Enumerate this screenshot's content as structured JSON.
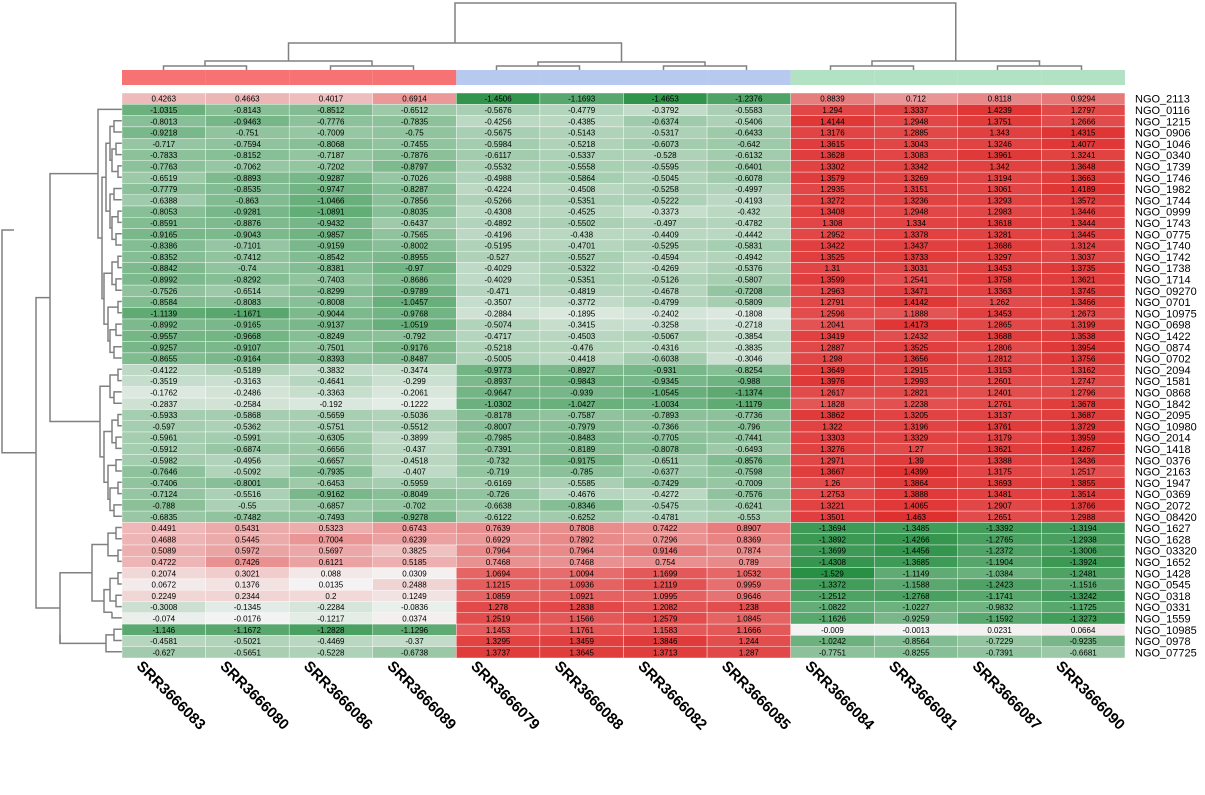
{
  "chart_data": {
    "type": "heatmap",
    "columns": [
      "SRR3666083",
      "SRR3666080",
      "SRR3666086",
      "SRR3666089",
      "SRR3666079",
      "SRR3666088",
      "SRR3666082",
      "SRR3666085",
      "SRR3666084",
      "SRR3666081",
      "SRR3666087",
      "SRR3666090"
    ],
    "rows": [
      "NGO_2113",
      "NGO_0116",
      "NGO_1215",
      "NGO_0906",
      "NGO_1046",
      "NGO_0340",
      "NGO_1739",
      "NGO_1746",
      "NGO_1982",
      "NGO_1744",
      "NGO_0999",
      "NGO_1743",
      "NGO_0775",
      "NGO_1740",
      "NGO_1742",
      "NGO_1738",
      "NGO_1714",
      "NGO_09270",
      "NGO_0701",
      "NGO_10975",
      "NGO_0698",
      "NGO_1422",
      "NGO_0874",
      "NGO_0702",
      "NGO_2094",
      "NGO_1581",
      "NGO_0868",
      "NGO_1842",
      "NGO_2095",
      "NGO_10980",
      "NGO_2014",
      "NGO_1418",
      "NGO_0376",
      "NGO_2163",
      "NGO_1947",
      "NGO_0369",
      "NGO_2072",
      "NGO_08420",
      "NGO_1627",
      "NGO_1628",
      "NGO_03320",
      "NGO_1652",
      "NGO_1428",
      "NGO_0545",
      "NGO_0318",
      "NGO_0331",
      "NGO_1559",
      "NGO_10985",
      "NGO_0978",
      "NGO_07725"
    ],
    "values": [
      [
        "0.4263",
        "0.4663",
        "0.4017",
        "0.6914",
        "-1.4506",
        "-1.1693",
        "-1.4653",
        "-1.2376",
        "0.8839",
        "0.712",
        "0.8118",
        "0.9294"
      ],
      [
        "-1.0315",
        "-0.8143",
        "-0.8512",
        "-0.6512",
        "-0.5676",
        "-0.4779",
        "-0.3792",
        "-0.5583",
        "1.294",
        "1.3337",
        "1.4239",
        "1.2797"
      ],
      [
        "-0.8013",
        "-0.9463",
        "-0.7776",
        "-0.7835",
        "-0.4256",
        "-0.4385",
        "-0.6374",
        "-0.5406",
        "1.4144",
        "1.2948",
        "1.3751",
        "1.2666"
      ],
      [
        "-0.9218",
        "-0.751",
        "-0.7009",
        "-0.75",
        "-0.5675",
        "-0.5143",
        "-0.5317",
        "-0.6433",
        "1.3176",
        "1.2885",
        "1.343",
        "1.4315"
      ],
      [
        "-0.717",
        "-0.7594",
        "-0.8068",
        "-0.7455",
        "-0.5984",
        "-0.5218",
        "-0.6073",
        "-0.642",
        "1.3615",
        "1.3043",
        "1.3246",
        "1.4077"
      ],
      [
        "-0.7833",
        "-0.8152",
        "-0.7187",
        "-0.7876",
        "-0.6117",
        "-0.5337",
        "-0.528",
        "-0.6132",
        "1.3628",
        "1.3083",
        "1.3961",
        "1.3241"
      ],
      [
        "-0.7763",
        "-0.7062",
        "-0.7202",
        "-0.8797",
        "-0.5532",
        "-0.5558",
        "-0.5595",
        "-0.6401",
        "1.3302",
        "1.3342",
        "1.342",
        "1.3648"
      ],
      [
        "-0.6519",
        "-0.8893",
        "-0.9287",
        "-0.7026",
        "-0.4988",
        "-0.5864",
        "-0.5045",
        "-0.6078",
        "1.3579",
        "1.3269",
        "1.3194",
        "1.3663"
      ],
      [
        "-0.7779",
        "-0.8535",
        "-0.9747",
        "-0.8287",
        "-0.4224",
        "-0.4508",
        "-0.5258",
        "-0.4997",
        "1.2935",
        "1.3151",
        "1.3061",
        "1.4189"
      ],
      [
        "-0.6388",
        "-0.863",
        "-1.0466",
        "-0.7856",
        "-0.5266",
        "-0.5351",
        "-0.5222",
        "-0.4193",
        "1.3272",
        "1.3236",
        "1.3293",
        "1.3572"
      ],
      [
        "-0.8053",
        "-0.9281",
        "-1.0891",
        "-0.8035",
        "-0.4308",
        "-0.4525",
        "-0.3373",
        "-0.432",
        "1.3408",
        "1.2948",
        "1.2983",
        "1.3446"
      ],
      [
        "-0.8591",
        "-0.8876",
        "-0.9432",
        "-0.6437",
        "-0.4892",
        "-0.5502",
        "-0.497",
        "-0.4782",
        "1.308",
        "1.334",
        "1.3618",
        "1.3444"
      ],
      [
        "-0.9165",
        "-0.9043",
        "-0.9857",
        "-0.7565",
        "-0.4196",
        "-0.438",
        "-0.4409",
        "-0.4442",
        "1.2952",
        "1.3378",
        "1.3281",
        "1.3445"
      ],
      [
        "-0.8386",
        "-0.7101",
        "-0.9159",
        "-0.8002",
        "-0.5195",
        "-0.4701",
        "-0.5295",
        "-0.5831",
        "1.3422",
        "1.3437",
        "1.3686",
        "1.3124"
      ],
      [
        "-0.8352",
        "-0.7412",
        "-0.8542",
        "-0.8955",
        "-0.527",
        "-0.5527",
        "-0.4594",
        "-0.4942",
        "1.3525",
        "1.3733",
        "1.3297",
        "1.3037"
      ],
      [
        "-0.8842",
        "-0.74",
        "-0.8381",
        "-0.97",
        "-0.4029",
        "-0.5322",
        "-0.4269",
        "-0.5376",
        "1.31",
        "1.3031",
        "1.3453",
        "1.3735"
      ],
      [
        "-0.8992",
        "-0.8292",
        "-0.7403",
        "-0.8686",
        "-0.4029",
        "-0.5351",
        "-0.5126",
        "-0.5807",
        "1.3599",
        "1.2541",
        "1.3758",
        "1.3621"
      ],
      [
        "-0.7526",
        "-0.6514",
        "-0.8299",
        "-0.9789",
        "-0.471",
        "-0.4819",
        "-0.4678",
        "-0.7208",
        "1.2963",
        "1.3471",
        "1.3363",
        "1.3745"
      ],
      [
        "-0.8584",
        "-0.8083",
        "-0.8008",
        "-1.0457",
        "-0.3507",
        "-0.3772",
        "-0.4799",
        "-0.5809",
        "1.2791",
        "1.4142",
        "1.262",
        "1.3466"
      ],
      [
        "-1.1139",
        "-1.1671",
        "-0.9044",
        "-0.9768",
        "-0.2884",
        "-0.1895",
        "-0.2402",
        "-0.1808",
        "1.2596",
        "1.1888",
        "1.3453",
        "1.2673"
      ],
      [
        "-0.8992",
        "-0.9165",
        "-0.9137",
        "-1.0519",
        "-0.5074",
        "-0.3415",
        "-0.3258",
        "-0.2718",
        "1.2041",
        "1.4173",
        "1.2865",
        "1.3199"
      ],
      [
        "-0.9557",
        "-0.9668",
        "-0.8249",
        "-0.792",
        "-0.4717",
        "-0.4503",
        "-0.5067",
        "-0.3854",
        "1.3419",
        "1.2432",
        "1.3688",
        "1.3538"
      ],
      [
        "-0.9257",
        "-0.9107",
        "-0.7501",
        "-0.9176",
        "-0.5218",
        "-0.476",
        "-0.4316",
        "-0.3835",
        "1.2887",
        "1.3525",
        "1.2806",
        "1.3954"
      ],
      [
        "-0.8655",
        "-0.9164",
        "-0.8393",
        "-0.8487",
        "-0.5005",
        "-0.4418",
        "-0.6038",
        "-0.3046",
        "1.298",
        "1.3656",
        "1.2812",
        "1.3756"
      ],
      [
        "-0.4122",
        "-0.5189",
        "-0.3832",
        "-0.3474",
        "-0.9773",
        "-0.8927",
        "-0.931",
        "-0.8254",
        "1.3649",
        "1.2915",
        "1.3153",
        "1.3162"
      ],
      [
        "-0.3519",
        "-0.3163",
        "-0.4641",
        "-0.299",
        "-0.8937",
        "-0.9843",
        "-0.9345",
        "-0.988",
        "1.3976",
        "1.2993",
        "1.2601",
        "1.2747"
      ],
      [
        "-0.1762",
        "-0.2486",
        "-0.3363",
        "-0.2061",
        "-0.9647",
        "-0.939",
        "-1.0545",
        "-1.1374",
        "1.2617",
        "1.2821",
        "1.2401",
        "1.2796"
      ],
      [
        "-0.2837",
        "-0.2584",
        "-0.192",
        "-0.1222",
        "-1.0302",
        "-1.0427",
        "-1.0034",
        "-1.1179",
        "1.1828",
        "1.2238",
        "1.2761",
        "1.3678"
      ],
      [
        "-0.5933",
        "-0.5868",
        "-0.5659",
        "-0.5036",
        "-0.8178",
        "-0.7587",
        "-0.7893",
        "-0.7736",
        "1.3862",
        "1.3205",
        "1.3137",
        "1.3687"
      ],
      [
        "-0.597",
        "-0.5362",
        "-0.5751",
        "-0.5512",
        "-0.8007",
        "-0.7979",
        "-0.7366",
        "-0.796",
        "1.322",
        "1.3196",
        "1.3761",
        "1.3729"
      ],
      [
        "-0.5961",
        "-0.5991",
        "-0.6305",
        "-0.3899",
        "-0.7985",
        "-0.8483",
        "-0.7705",
        "-0.7441",
        "1.3303",
        "1.3329",
        "1.3179",
        "1.3959"
      ],
      [
        "-0.5912",
        "-0.6874",
        "-0.6656",
        "-0.437",
        "-0.7391",
        "-0.8189",
        "-0.8078",
        "-0.6493",
        "1.3276",
        "1.27",
        "1.3621",
        "1.4267"
      ],
      [
        "-0.5982",
        "-0.4956",
        "-0.6657",
        "-0.4518",
        "-0.732",
        "-0.9175",
        "-0.6511",
        "-0.8576",
        "1.2971",
        "1.39",
        "1.3388",
        "1.3436"
      ],
      [
        "-0.7646",
        "-0.5092",
        "-0.7935",
        "-0.407",
        "-0.719",
        "-0.785",
        "-0.6377",
        "-0.7598",
        "1.3667",
        "1.4399",
        "1.3175",
        "1.2517"
      ],
      [
        "-0.7406",
        "-0.8001",
        "-0.6453",
        "-0.5959",
        "-0.6169",
        "-0.5585",
        "-0.7429",
        "-0.7009",
        "1.26",
        "1.3864",
        "1.3693",
        "1.3855"
      ],
      [
        "-0.7124",
        "-0.5516",
        "-0.9162",
        "-0.8049",
        "-0.726",
        "-0.4676",
        "-0.4272",
        "-0.7576",
        "1.2753",
        "1.3888",
        "1.3481",
        "1.3514"
      ],
      [
        "-0.788",
        "-0.55",
        "-0.6857",
        "-0.702",
        "-0.6638",
        "-0.8346",
        "-0.5475",
        "-0.6241",
        "1.3221",
        "1.4065",
        "1.2907",
        "1.3766"
      ],
      [
        "-0.6835",
        "-0.7482",
        "-0.7493",
        "-0.9278",
        "-0.6122",
        "-0.6252",
        "-0.4781",
        "-0.553",
        "1.3501",
        "1.463",
        "1.2651",
        "1.2988"
      ],
      [
        "0.4491",
        "0.5431",
        "0.5323",
        "0.6743",
        "0.7639",
        "0.7808",
        "0.7422",
        "0.8907",
        "-1.3694",
        "-1.3485",
        "-1.3392",
        "-1.3194"
      ],
      [
        "0.4688",
        "0.5445",
        "0.7004",
        "0.6239",
        "0.6929",
        "0.7892",
        "0.7296",
        "0.8369",
        "-1.3892",
        "-1.4266",
        "-1.2765",
        "-1.2938"
      ],
      [
        "0.5089",
        "0.5972",
        "0.5697",
        "0.3825",
        "0.7964",
        "0.7964",
        "0.9146",
        "0.7874",
        "-1.3699",
        "-1.4456",
        "-1.2372",
        "-1.3006"
      ],
      [
        "0.4722",
        "0.7426",
        "0.6121",
        "0.5185",
        "0.7468",
        "0.7468",
        "0.754",
        "0.789",
        "-1.4308",
        "-1.3685",
        "-1.1904",
        "-1.3924"
      ],
      [
        "0.2074",
        "0.3021",
        "0.088",
        "0.0309",
        "1.0694",
        "1.0094",
        "1.1699",
        "1.0532",
        "-1.529",
        "-1.1149",
        "-1.0384",
        "-1.2481"
      ],
      [
        "0.0672",
        "0.1376",
        "0.0135",
        "0.2488",
        "1.1215",
        "1.0936",
        "1.2119",
        "0.9959",
        "-1.3372",
        "-1.1588",
        "-1.2423",
        "-1.1516"
      ],
      [
        "0.2249",
        "0.2344",
        "0.2",
        "0.1249",
        "1.0859",
        "1.0921",
        "1.0995",
        "0.9646",
        "-1.2512",
        "-1.2768",
        "-1.1741",
        "-1.3242"
      ],
      [
        "-0.3008",
        "-0.1345",
        "-0.2284",
        "-0.0836",
        "1.278",
        "1.2838",
        "1.2082",
        "1.238",
        "-1.0822",
        "-1.0227",
        "-0.9832",
        "-1.1725"
      ],
      [
        "-0.074",
        "-0.0176",
        "-0.1217",
        "0.0374",
        "1.2519",
        "1.1566",
        "1.2579",
        "1.0845",
        "-1.1626",
        "-0.9259",
        "-1.1592",
        "-1.3273"
      ],
      [
        "-1.146",
        "-1.1672",
        "-1.2828",
        "-1.1296",
        "1.1453",
        "1.1761",
        "1.1583",
        "1.1666",
        "-0.009",
        "-0.0013",
        "0.0231",
        "0.0664"
      ],
      [
        "-0.4581",
        "-0.5021",
        "-0.4469",
        "-0.37",
        "1.3295",
        "1.3459",
        "1.3846",
        "1.244",
        "-1.0242",
        "-0.8564",
        "-0.7229",
        "-0.9235"
      ],
      [
        "-0.627",
        "-0.5651",
        "-0.5228",
        "-0.6738",
        "1.3737",
        "1.3645",
        "1.3713",
        "1.287",
        "-0.7751",
        "-0.8255",
        "-0.7391",
        "-0.6681"
      ]
    ],
    "column_groups": [
      {
        "columns": [
          "SRR3666083",
          "SRR3666080",
          "SRR3666086",
          "SRR3666089"
        ],
        "color": "#f77272"
      },
      {
        "columns": [
          "SRR3666079",
          "SRR3666088",
          "SRR3666082",
          "SRR3666085"
        ],
        "color": "#b7c9ef"
      },
      {
        "columns": [
          "SRR3666084",
          "SRR3666081",
          "SRR3666087",
          "SRR3666090"
        ],
        "color": "#b2e2c3"
      }
    ],
    "color_scale": {
      "low": "#1f8b3c",
      "mid": "#f4f4f4",
      "high": "#dd1e1e",
      "range": [
        -1.6,
        1.6
      ]
    },
    "row_dendrogram": true,
    "column_dendrogram": true,
    "grid": false,
    "legend": "none"
  }
}
